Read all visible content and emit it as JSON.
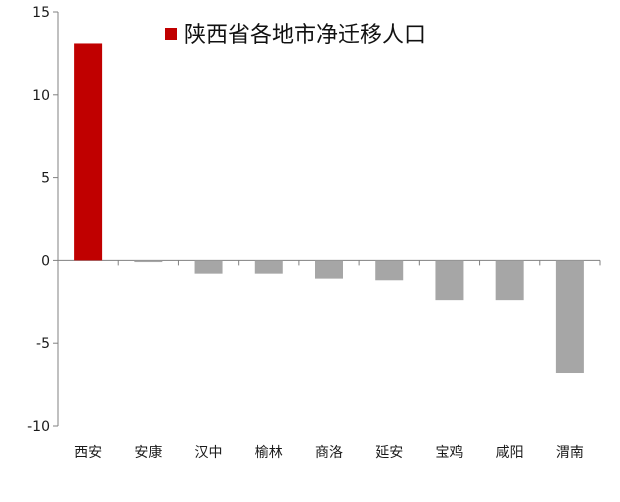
{
  "chart_data": {
    "type": "bar",
    "title": "",
    "xlabel": "",
    "ylabel": "",
    "ylim": [
      -10,
      15
    ],
    "yticks": [
      15,
      10,
      5,
      0,
      -5,
      -10
    ],
    "grid": false,
    "legend": {
      "entries": [
        "陕西省各地市净迁移人口"
      ],
      "placement": "top-center"
    },
    "categories": [
      "西安",
      "安康",
      "汉中",
      "榆林",
      "商洛",
      "延安",
      "宝鸡",
      "咸阳",
      "渭南"
    ],
    "series": [
      {
        "name": "陕西省各地市净迁移人口",
        "values": [
          13.1,
          -0.1,
          -0.8,
          -0.8,
          -1.1,
          -1.2,
          -2.4,
          -2.4,
          -6.8
        ]
      }
    ],
    "colors": {
      "highlight": "#c00000",
      "default": "#a6a6a6",
      "axis": "#808080"
    }
  }
}
